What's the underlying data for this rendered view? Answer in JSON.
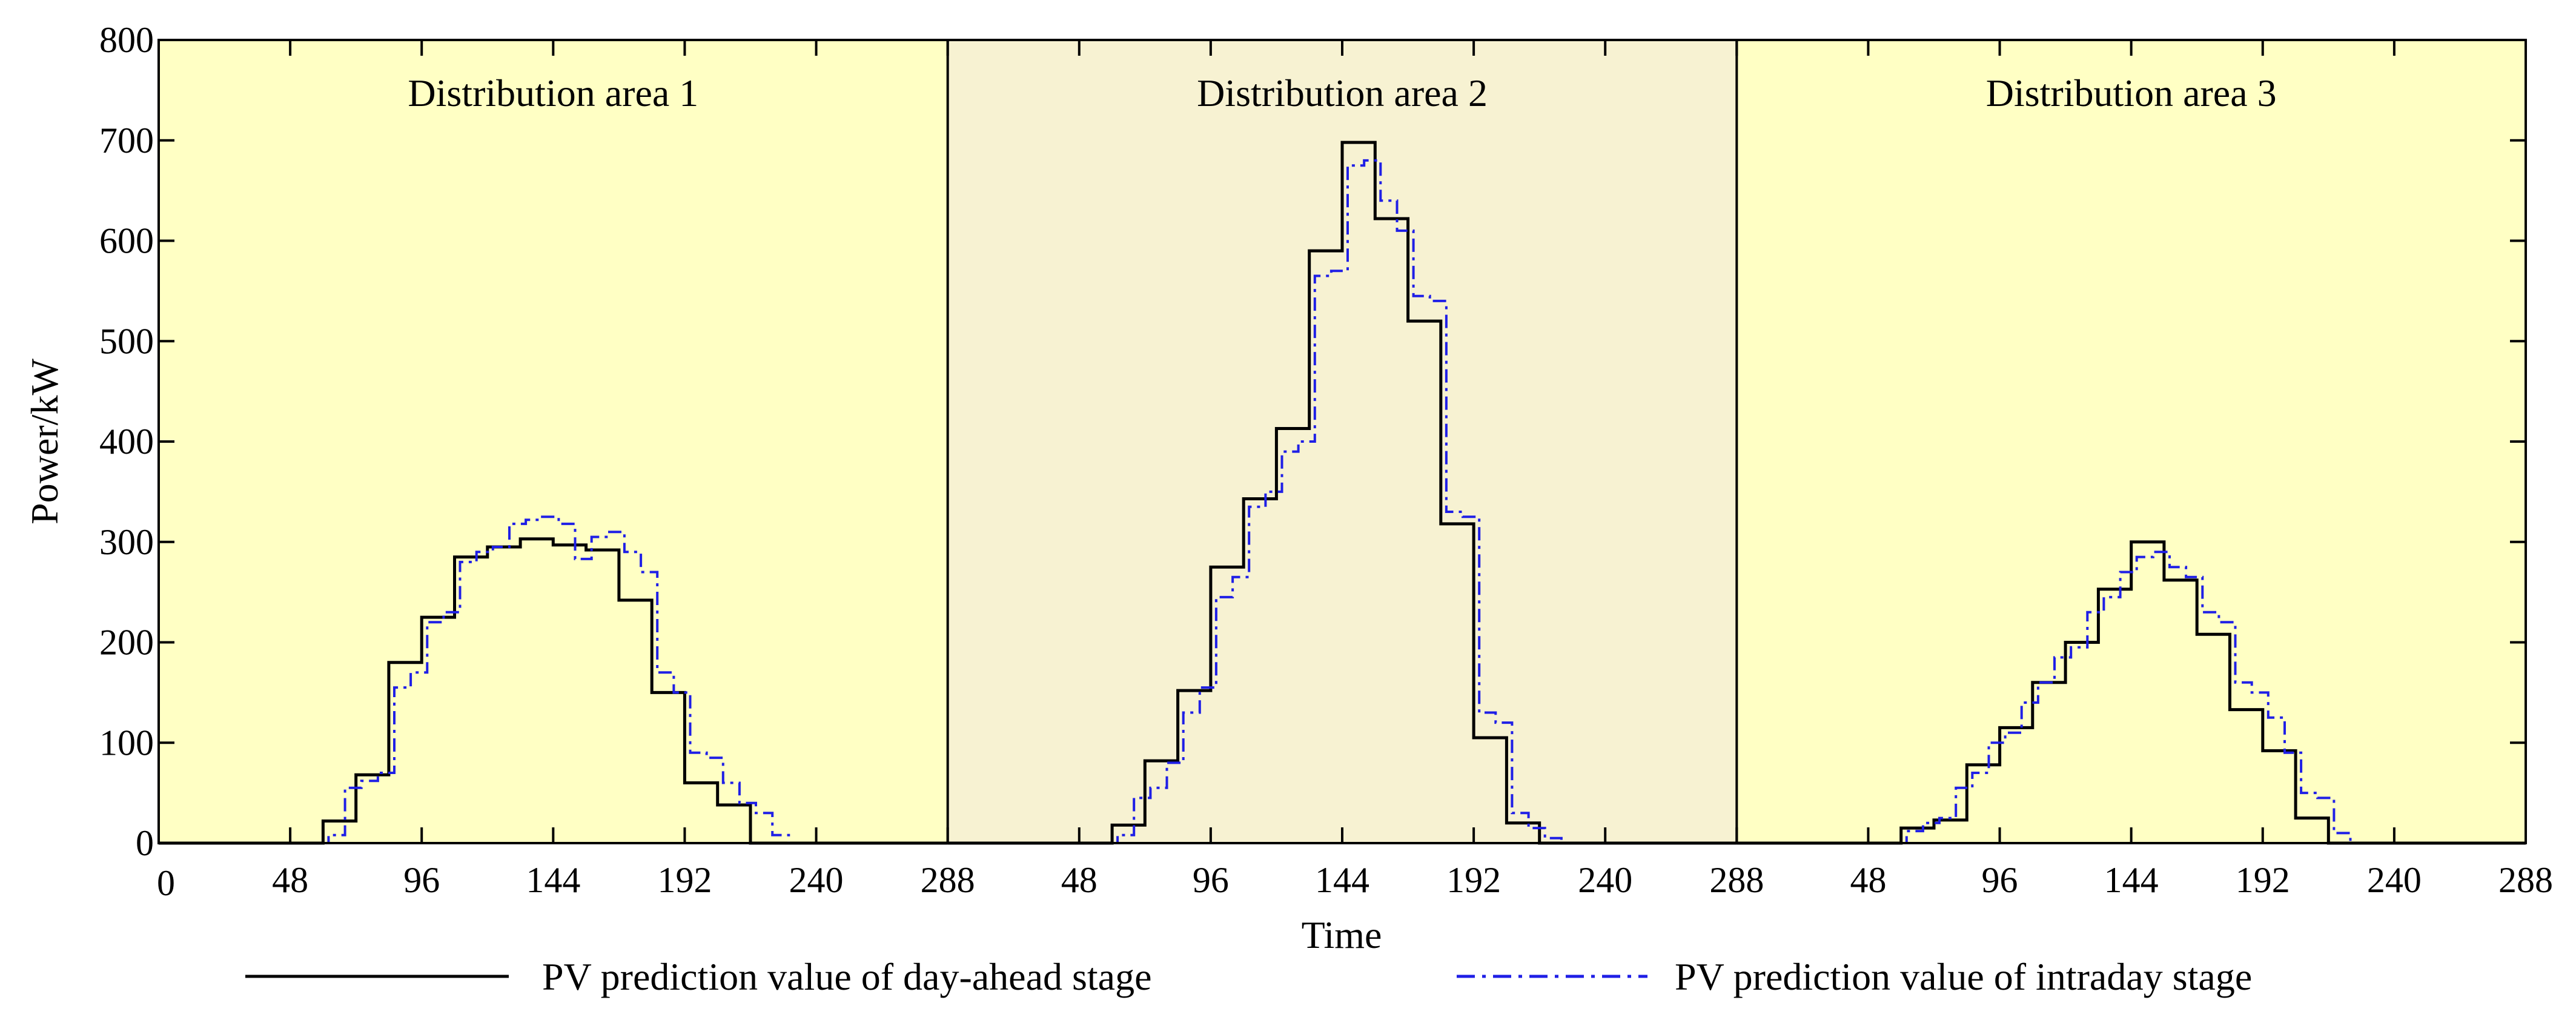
{
  "chart_data": {
    "type": "line",
    "step": true,
    "ylabel": "Power/kW",
    "xlabel": "Time",
    "ylim": [
      0,
      800
    ],
    "yticks": [
      0,
      100,
      200,
      300,
      400,
      500,
      600,
      700,
      800
    ],
    "ytick_labels": [
      "0",
      "100",
      "200",
      "300",
      "400",
      "500",
      "600",
      "700",
      "800"
    ],
    "xlim": [
      0,
      288
    ],
    "xticks": [
      48,
      96,
      144,
      192,
      240,
      288
    ],
    "xtick_labels": [
      "48",
      "96",
      "144",
      "192",
      "240",
      "288"
    ],
    "origin_label": "0",
    "colors": {
      "day_ahead": "#000000",
      "intraday": "#1f1fe6",
      "panel_light": "#ffffc4",
      "panel_dark": "#f7f2d2"
    },
    "legend": [
      {
        "name": "PV prediction value of day-ahead stage",
        "style": "solid",
        "color": "#000000"
      },
      {
        "name": "PV prediction value of intraday stage",
        "style": "dashdot",
        "color": "#1f1fe6"
      }
    ],
    "panels": [
      {
        "title": "Distribution area 1",
        "day_ahead": {
          "x": [
            0,
            60,
            72,
            84,
            96,
            108,
            120,
            132,
            144,
            156,
            168,
            180,
            192,
            204,
            216,
            228
          ],
          "values": [
            0,
            22,
            68,
            180,
            225,
            285,
            295,
            303,
            297,
            292,
            242,
            150,
            60,
            38,
            0,
            0
          ]
        },
        "intraday": {
          "x": [
            0,
            62,
            68,
            74,
            80,
            86,
            92,
            98,
            104,
            110,
            116,
            122,
            128,
            134,
            140,
            146,
            152,
            158,
            164,
            170,
            176,
            182,
            188,
            194,
            200,
            206,
            212,
            218,
            224,
            230
          ],
          "values": [
            0,
            8,
            55,
            62,
            70,
            155,
            170,
            220,
            230,
            280,
            290,
            295,
            318,
            322,
            325,
            318,
            283,
            305,
            310,
            290,
            270,
            170,
            150,
            90,
            85,
            60,
            40,
            30,
            8,
            0
          ]
        }
      },
      {
        "title": "Distribution area 2",
        "day_ahead": {
          "x": [
            0,
            60,
            72,
            84,
            96,
            108,
            120,
            132,
            144,
            156,
            168,
            180,
            192,
            204,
            216,
            228
          ],
          "values": [
            0,
            18,
            82,
            152,
            275,
            343,
            413,
            590,
            698,
            622,
            520,
            318,
            105,
            20,
            0,
            0
          ]
        },
        "intraday": {
          "x": [
            0,
            62,
            68,
            74,
            80,
            86,
            92,
            98,
            104,
            110,
            116,
            122,
            128,
            134,
            140,
            146,
            152,
            158,
            164,
            170,
            176,
            182,
            188,
            194,
            200,
            206,
            212,
            218,
            224,
            230
          ],
          "values": [
            0,
            8,
            45,
            55,
            80,
            130,
            155,
            245,
            265,
            335,
            350,
            390,
            400,
            565,
            570,
            675,
            680,
            640,
            610,
            545,
            540,
            330,
            325,
            130,
            120,
            30,
            15,
            5,
            0,
            0
          ]
        }
      },
      {
        "title": "Distribution area 3",
        "day_ahead": {
          "x": [
            0,
            60,
            72,
            84,
            96,
            108,
            120,
            132,
            144,
            156,
            168,
            180,
            192,
            204,
            216,
            228
          ],
          "values": [
            0,
            15,
            23,
            78,
            115,
            160,
            200,
            253,
            300,
            262,
            208,
            133,
            92,
            25,
            0,
            0
          ]
        },
        "intraday": {
          "x": [
            0,
            62,
            68,
            74,
            80,
            86,
            92,
            98,
            104,
            110,
            116,
            122,
            128,
            134,
            140,
            146,
            152,
            158,
            164,
            170,
            176,
            182,
            188,
            194,
            200,
            206,
            212,
            218,
            224,
            230
          ],
          "values": [
            0,
            12,
            20,
            25,
            55,
            70,
            100,
            110,
            140,
            160,
            185,
            195,
            230,
            245,
            270,
            285,
            290,
            275,
            265,
            230,
            220,
            160,
            150,
            125,
            90,
            50,
            45,
            10,
            0,
            0
          ]
        }
      }
    ]
  }
}
